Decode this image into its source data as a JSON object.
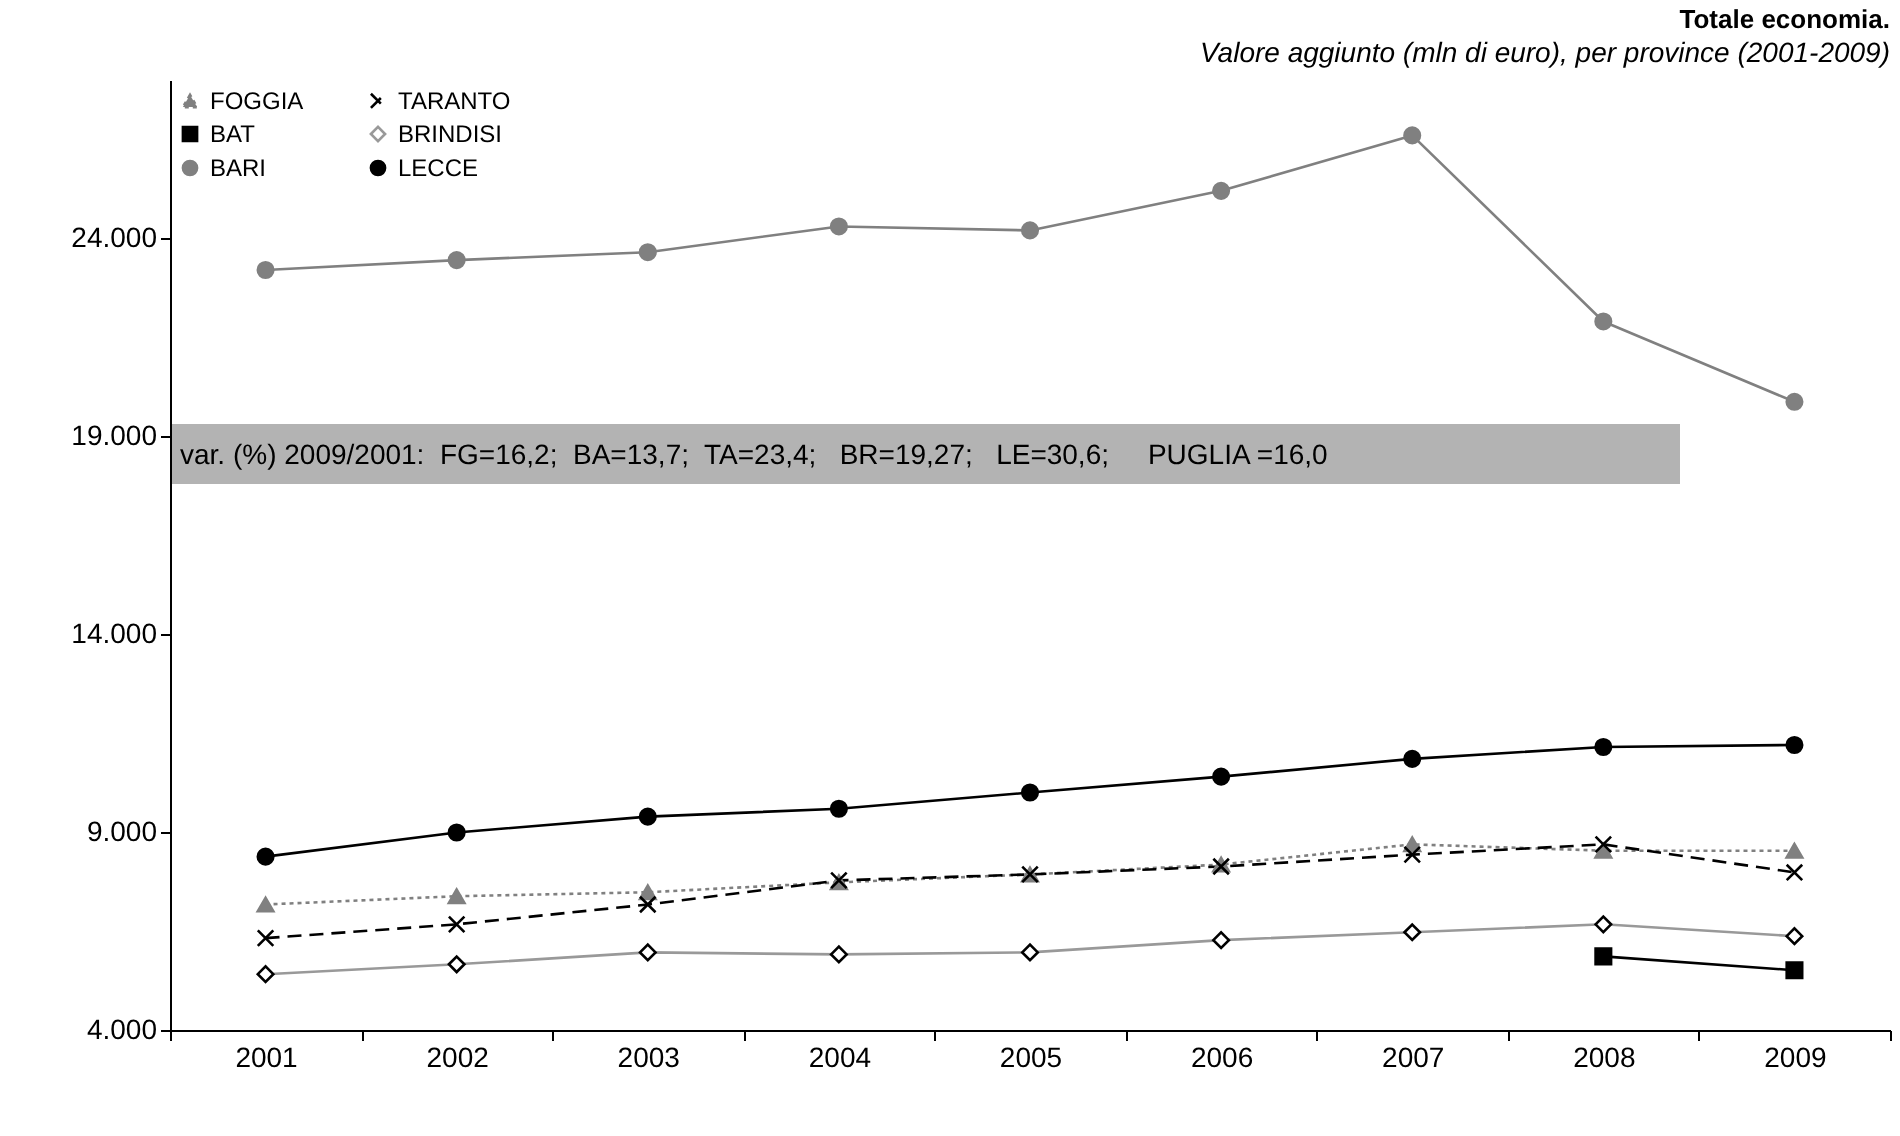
{
  "chart_data": {
    "type": "line",
    "title": "Totale economia.",
    "subtitle": "Valore aggiunto (mln di euro), per province (2001-2009)",
    "categories": [
      "2001",
      "2002",
      "2003",
      "2004",
      "2005",
      "2006",
      "2007",
      "2008",
      "2009"
    ],
    "ylim": [
      4000,
      28000
    ],
    "yticks": [
      {
        "value": 4000,
        "label": "4.000"
      },
      {
        "value": 9000,
        "label": "9.000"
      },
      {
        "value": 14000,
        "label": "14.000"
      },
      {
        "value": 19000,
        "label": "19.000"
      },
      {
        "value": 24000,
        "label": "24.000"
      }
    ],
    "legend": "top left",
    "annotations": [
      "var. (%) 2009/2001:  FG=16,2;  BA=13,7;  TA=23,4;   BR=19,27;   LE=30,6;     PUGLIA =16,0"
    ],
    "series": [
      {
        "name": "FOGGIA",
        "color": "#808080",
        "marker": "triangle",
        "line_style": "dotted",
        "values": [
          7170,
          7380,
          7480,
          7730,
          7930,
          8180,
          8690,
          8530,
          8530
        ]
      },
      {
        "name": "BAT",
        "color": "#000000",
        "marker": "square",
        "line_style": "solid",
        "values": [
          null,
          null,
          null,
          null,
          null,
          null,
          null,
          5860,
          5510
        ]
      },
      {
        "name": "BARI",
        "color": "#808080",
        "marker": "circle",
        "line_style": "solid",
        "values": [
          23200,
          23450,
          23650,
          24300,
          24200,
          25200,
          26600,
          21900,
          19870
        ]
      },
      {
        "name": "TARANTO",
        "color": "#000000",
        "marker": "cross",
        "line_style": "dashed",
        "values": [
          6320,
          6670,
          7170,
          7780,
          7930,
          8130,
          8430,
          8690,
          7980
        ]
      },
      {
        "name": "BRINDISI",
        "color": "#999999",
        "marker": "diamond",
        "line_style": "solid",
        "values": [
          5410,
          5660,
          5960,
          5910,
          5960,
          6270,
          6470,
          6670,
          6370
        ]
      },
      {
        "name": "LECCE",
        "color": "#000000",
        "marker": "circle",
        "line_style": "solid",
        "values": [
          8380,
          8990,
          9390,
          9590,
          10000,
          10400,
          10850,
          11150,
          11200
        ]
      }
    ]
  }
}
